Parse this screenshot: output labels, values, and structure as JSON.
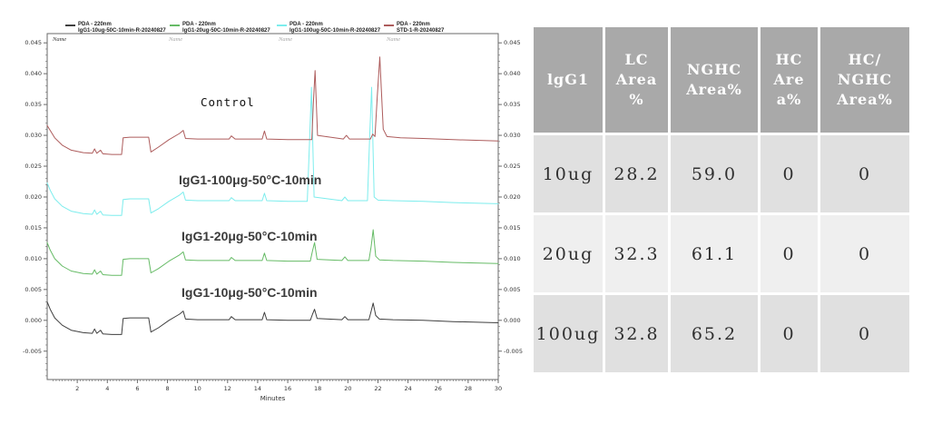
{
  "theme": {
    "background": "#ffffff",
    "axis_color": "#6a6a6a",
    "tick_text_color": "#333333",
    "table_header_bg": "#a9a9a9",
    "table_header_text": "#ffffff",
    "table_row_bg_odd": "#e0e0e0",
    "table_row_bg_even": "#efefef",
    "table_cell_text": "#2f2f2f"
  },
  "chart": {
    "legend": [
      {
        "channel": "PDA - 220nm",
        "sample": "IgG1-10ug-50C-10min-R-20240827",
        "name_label": "Name",
        "name_color": "#333333"
      },
      {
        "channel": "PDA - 220nm",
        "sample": "IgG1-20ug-50C-10min-R-20240827",
        "name_label": "Name",
        "name_color": "#a8a8a8"
      },
      {
        "channel": "PDA - 220nm",
        "sample": "IgG1-100ug-50C-10min-R-20240827",
        "name_label": "Name",
        "name_color": "#a8a8a8"
      },
      {
        "channel": "PDA - 220nm",
        "sample": "STD-1-R-20240827",
        "name_label": "Name",
        "name_color": "#a8a8a8"
      }
    ],
    "annotations": [
      {
        "text": "Control"
      },
      {
        "text": "IgG1-100μg-50°C-10min"
      },
      {
        "text": "IgG1-20μg-50°C-10min"
      },
      {
        "text": "IgG1-10μg-50°C-10min"
      }
    ]
  },
  "chart_data": {
    "type": "line",
    "title": "",
    "xlabel": "Minutes",
    "ylabel": "",
    "xlim": [
      0,
      30
    ],
    "ylim": [
      -0.0096,
      0.0465
    ],
    "x_ticks": [
      2,
      4,
      6,
      8,
      10,
      12,
      14,
      16,
      18,
      20,
      22,
      24,
      26,
      28,
      30
    ],
    "y_ticks": [
      "0.045",
      "0.040",
      "0.035",
      "0.030",
      "0.025",
      "0.020",
      "0.015",
      "0.010",
      "0.005",
      "0.000",
      "-0.005"
    ],
    "grid": false,
    "legend_position": "top",
    "series": [
      {
        "name": "IgG1-10ug-50C-10min-R-20240827",
        "color": "#3f3f3f",
        "points": [
          [
            0,
            0.003
          ],
          [
            0.2,
            0.0018
          ],
          [
            0.5,
            0.0004
          ],
          [
            1,
            -0.0008
          ],
          [
            1.6,
            -0.0016
          ],
          [
            2.4,
            -0.002
          ],
          [
            3.0,
            -0.0021
          ],
          [
            3.15,
            -0.0014
          ],
          [
            3.3,
            -0.0021
          ],
          [
            3.55,
            -0.0016
          ],
          [
            3.7,
            -0.0022
          ],
          [
            4.3,
            -0.0023
          ],
          [
            4.95,
            -0.0023
          ],
          [
            5.05,
            0.0003
          ],
          [
            5.5,
            0.0004
          ],
          [
            6.75,
            0.0004
          ],
          [
            6.9,
            -0.0019
          ],
          [
            7.4,
            -0.0012
          ],
          [
            8.1,
            0.0
          ],
          [
            8.8,
            0.001
          ],
          [
            9.05,
            0.0015
          ],
          [
            9.2,
            0.0002
          ],
          [
            10,
            0.0001
          ],
          [
            11.5,
            0.0001
          ],
          [
            12.1,
            0.0001
          ],
          [
            12.25,
            0.0006
          ],
          [
            12.5,
            0.0001
          ],
          [
            13.5,
            0.0001
          ],
          [
            14.3,
            0.0001
          ],
          [
            14.45,
            0.0013
          ],
          [
            14.6,
            0.0001
          ],
          [
            16,
            0.0
          ],
          [
            17.5,
            0.0
          ],
          [
            17.65,
            0.001
          ],
          [
            17.78,
            0.0018
          ],
          [
            17.95,
            0.0003
          ],
          [
            19.6,
            0.0001
          ],
          [
            19.8,
            0.0006
          ],
          [
            20.0,
            0.0001
          ],
          [
            21.4,
            0.0001
          ],
          [
            21.55,
            0.0015
          ],
          [
            21.68,
            0.0028
          ],
          [
            21.85,
            0.0008
          ],
          [
            22.1,
            0.0002
          ],
          [
            23,
            0.0001
          ],
          [
            25,
            0.0
          ],
          [
            27,
            -0.0002
          ],
          [
            30,
            -0.0004
          ]
        ]
      },
      {
        "name": "IgG1-20ug-50C-10min-R-20240827",
        "color": "#66bb66",
        "points": [
          [
            0,
            0.0126
          ],
          [
            0.2,
            0.0114
          ],
          [
            0.5,
            0.01
          ],
          [
            1,
            0.0088
          ],
          [
            1.6,
            0.008
          ],
          [
            2.4,
            0.0076
          ],
          [
            3.0,
            0.0075
          ],
          [
            3.15,
            0.0082
          ],
          [
            3.3,
            0.0075
          ],
          [
            3.55,
            0.008
          ],
          [
            3.7,
            0.0074
          ],
          [
            4.3,
            0.0073
          ],
          [
            4.95,
            0.0073
          ],
          [
            5.05,
            0.0099
          ],
          [
            5.5,
            0.01
          ],
          [
            6.75,
            0.01
          ],
          [
            6.9,
            0.0077
          ],
          [
            7.4,
            0.0084
          ],
          [
            8.1,
            0.0096
          ],
          [
            8.8,
            0.0106
          ],
          [
            9.05,
            0.0111
          ],
          [
            9.2,
            0.0098
          ],
          [
            10,
            0.0097
          ],
          [
            11.5,
            0.0097
          ],
          [
            12.1,
            0.0097
          ],
          [
            12.25,
            0.0102
          ],
          [
            12.5,
            0.0097
          ],
          [
            13.5,
            0.0097
          ],
          [
            14.3,
            0.0097
          ],
          [
            14.45,
            0.0109
          ],
          [
            14.6,
            0.0097
          ],
          [
            16,
            0.0096
          ],
          [
            17.5,
            0.0096
          ],
          [
            17.65,
            0.0113
          ],
          [
            17.78,
            0.0126
          ],
          [
            17.95,
            0.0099
          ],
          [
            19.6,
            0.0097
          ],
          [
            19.8,
            0.0103
          ],
          [
            20.0,
            0.0097
          ],
          [
            21.4,
            0.0097
          ],
          [
            21.55,
            0.012
          ],
          [
            21.68,
            0.0147
          ],
          [
            21.85,
            0.0104
          ],
          [
            22.1,
            0.0098
          ],
          [
            23,
            0.0097
          ],
          [
            25,
            0.0096
          ],
          [
            27,
            0.0094
          ],
          [
            30,
            0.0092
          ]
        ]
      },
      {
        "name": "IgG1-100ug-50C-10min-R-20240827",
        "color": "#7deded",
        "points": [
          [
            0,
            0.0223
          ],
          [
            0.2,
            0.0211
          ],
          [
            0.5,
            0.0197
          ],
          [
            1,
            0.0185
          ],
          [
            1.6,
            0.0177
          ],
          [
            2.4,
            0.0173
          ],
          [
            3.0,
            0.0172
          ],
          [
            3.15,
            0.0179
          ],
          [
            3.3,
            0.0172
          ],
          [
            3.55,
            0.0177
          ],
          [
            3.7,
            0.0171
          ],
          [
            4.3,
            0.017
          ],
          [
            4.95,
            0.017
          ],
          [
            5.05,
            0.0196
          ],
          [
            5.5,
            0.0197
          ],
          [
            6.75,
            0.0197
          ],
          [
            6.9,
            0.0174
          ],
          [
            7.4,
            0.0181
          ],
          [
            8.1,
            0.0193
          ],
          [
            8.8,
            0.0203
          ],
          [
            9.05,
            0.0208
          ],
          [
            9.2,
            0.0195
          ],
          [
            10,
            0.0194
          ],
          [
            11.5,
            0.0194
          ],
          [
            12.1,
            0.0194
          ],
          [
            12.25,
            0.0199
          ],
          [
            12.5,
            0.0194
          ],
          [
            13.5,
            0.0194
          ],
          [
            14.3,
            0.0194
          ],
          [
            14.45,
            0.0206
          ],
          [
            14.6,
            0.0194
          ],
          [
            16,
            0.0193
          ],
          [
            17.3,
            0.0193
          ],
          [
            17.45,
            0.029
          ],
          [
            17.58,
            0.0378
          ],
          [
            17.75,
            0.02
          ],
          [
            19.6,
            0.0194
          ],
          [
            19.8,
            0.02
          ],
          [
            20.0,
            0.0194
          ],
          [
            21.3,
            0.0194
          ],
          [
            21.45,
            0.03
          ],
          [
            21.58,
            0.0378
          ],
          [
            21.75,
            0.02
          ],
          [
            22.0,
            0.0195
          ],
          [
            23,
            0.0194
          ],
          [
            25,
            0.0193
          ],
          [
            27,
            0.0191
          ],
          [
            30,
            0.0189
          ]
        ]
      },
      {
        "name": "STD-1-R-20240827",
        "color": "#ad5c5c",
        "points": [
          [
            0,
            0.0316
          ],
          [
            0.2,
            0.0308
          ],
          [
            0.5,
            0.0296
          ],
          [
            1,
            0.0284
          ],
          [
            1.6,
            0.0276
          ],
          [
            2.4,
            0.0272
          ],
          [
            3.0,
            0.0271
          ],
          [
            3.15,
            0.0278
          ],
          [
            3.3,
            0.0271
          ],
          [
            3.55,
            0.0276
          ],
          [
            3.7,
            0.027
          ],
          [
            4.3,
            0.0269
          ],
          [
            4.95,
            0.0269
          ],
          [
            5.05,
            0.0296
          ],
          [
            5.5,
            0.0297
          ],
          [
            6.75,
            0.0297
          ],
          [
            6.9,
            0.0273
          ],
          [
            7.4,
            0.0281
          ],
          [
            8.1,
            0.0293
          ],
          [
            8.8,
            0.0303
          ],
          [
            9.05,
            0.0308
          ],
          [
            9.2,
            0.0295
          ],
          [
            10,
            0.0294
          ],
          [
            11.5,
            0.0294
          ],
          [
            12.1,
            0.0294
          ],
          [
            12.25,
            0.0299
          ],
          [
            12.5,
            0.0294
          ],
          [
            13.5,
            0.0294
          ],
          [
            14.3,
            0.0294
          ],
          [
            14.45,
            0.0307
          ],
          [
            14.6,
            0.0294
          ],
          [
            16,
            0.0293
          ],
          [
            17.6,
            0.0293
          ],
          [
            17.7,
            0.035
          ],
          [
            17.82,
            0.0405
          ],
          [
            17.98,
            0.03
          ],
          [
            19.7,
            0.0294
          ],
          [
            19.9,
            0.03
          ],
          [
            20.1,
            0.0294
          ],
          [
            21.5,
            0.0294
          ],
          [
            21.65,
            0.0302
          ],
          [
            21.8,
            0.0298
          ],
          [
            21.95,
            0.036
          ],
          [
            22.12,
            0.0427
          ],
          [
            22.35,
            0.031
          ],
          [
            22.6,
            0.0298
          ],
          [
            23.5,
            0.0296
          ],
          [
            25,
            0.0295
          ],
          [
            27,
            0.0293
          ],
          [
            30,
            0.0291
          ]
        ]
      }
    ]
  },
  "table": {
    "headers": [
      "lgG1",
      "LC\nArea\n%",
      "NGHC\nArea%",
      "HC\nAre\na%",
      "HC/\nNGHC\nArea%"
    ],
    "rows": [
      [
        "10ug",
        "28.2",
        "59.0",
        "0",
        "0"
      ],
      [
        "20ug",
        "32.3",
        "61.1",
        "0",
        "0"
      ],
      [
        "100ug",
        "32.8",
        "65.2",
        "0",
        "0"
      ]
    ]
  }
}
